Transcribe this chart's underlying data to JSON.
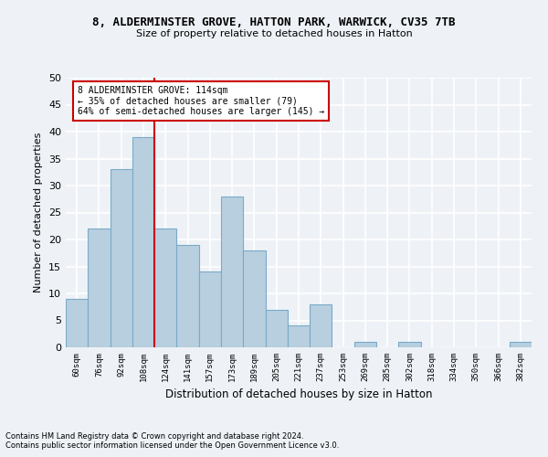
{
  "title1": "8, ALDERMINSTER GROVE, HATTON PARK, WARWICK, CV35 7TB",
  "title2": "Size of property relative to detached houses in Hatton",
  "xlabel": "Distribution of detached houses by size in Hatton",
  "ylabel": "Number of detached properties",
  "bar_color": "#b8cfe0",
  "bar_edge_color": "#7aaac8",
  "categories": [
    "60sqm",
    "76sqm",
    "92sqm",
    "108sqm",
    "124sqm",
    "141sqm",
    "157sqm",
    "173sqm",
    "189sqm",
    "205sqm",
    "221sqm",
    "237sqm",
    "253sqm",
    "269sqm",
    "285sqm",
    "302sqm",
    "318sqm",
    "334sqm",
    "350sqm",
    "366sqm",
    "382sqm"
  ],
  "values": [
    9,
    22,
    33,
    39,
    22,
    19,
    14,
    28,
    18,
    7,
    4,
    8,
    0,
    1,
    0,
    1,
    0,
    0,
    0,
    0,
    1
  ],
  "ylim": [
    0,
    50
  ],
  "yticks": [
    0,
    5,
    10,
    15,
    20,
    25,
    30,
    35,
    40,
    45,
    50
  ],
  "property_line_x": 3.5,
  "annotation_line1": "8 ALDERMINSTER GROVE: 114sqm",
  "annotation_line2": "← 35% of detached houses are smaller (79)",
  "annotation_line3": "64% of semi-detached houses are larger (145) →",
  "footnote1": "Contains HM Land Registry data © Crown copyright and database right 2024.",
  "footnote2": "Contains public sector information licensed under the Open Government Licence v3.0.",
  "background_color": "#eef2f7",
  "grid_color": "#ffffff",
  "annotation_box_color": "#ffffff",
  "annotation_box_edge": "#cc0000",
  "vline_color": "#cc0000"
}
